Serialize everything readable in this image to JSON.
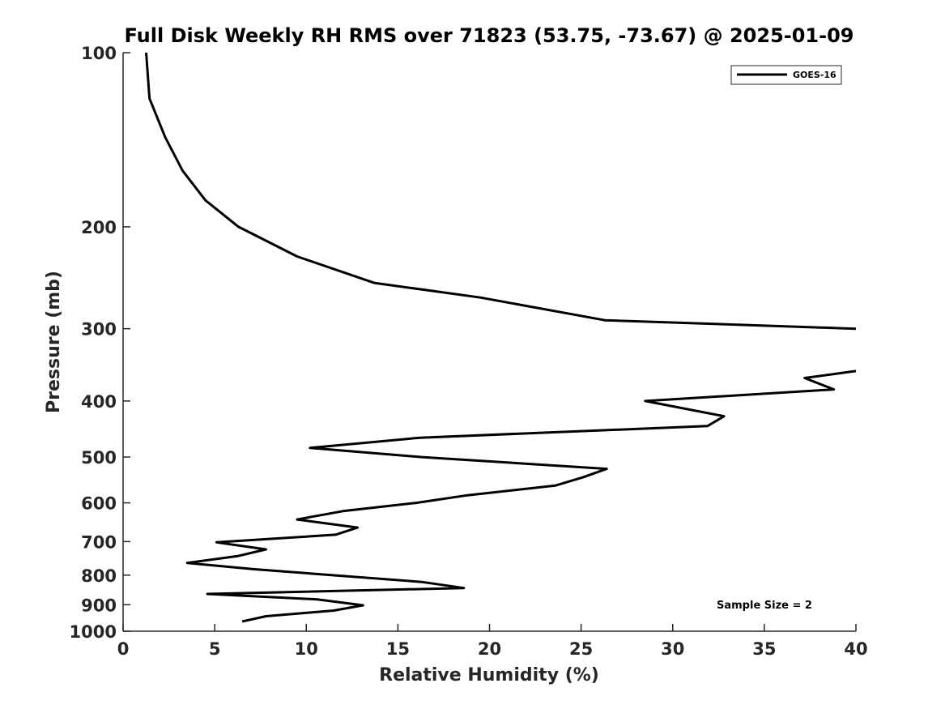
{
  "chart_data": {
    "type": "line",
    "title": "Full Disk Weekly RH RMS over 71823 (53.75, -73.67) @ 2025-01-09",
    "xlabel": "Relative Humidity (%)",
    "ylabel": "Pressure (mb)",
    "xlim": [
      0,
      40
    ],
    "ylim": [
      1000,
      100
    ],
    "y_scale": "log",
    "y_reversed": true,
    "x_ticks": [
      "0",
      "5",
      "10",
      "15",
      "20",
      "25",
      "30",
      "35",
      "40"
    ],
    "y_ticks": [
      "100",
      "200",
      "300",
      "400",
      "500",
      "600",
      "700",
      "800",
      "900",
      "1000"
    ],
    "grid": false,
    "legend_position": "top-right",
    "annotation": "Sample Size = 2",
    "series_color": "#000000",
    "series": [
      {
        "name": "GOES-16",
        "points": [
          {
            "x": 1.26,
            "y": 100
          },
          {
            "x": 1.44,
            "y": 120
          },
          {
            "x": 2.3,
            "y": 140
          },
          {
            "x": 3.25,
            "y": 160
          },
          {
            "x": 4.5,
            "y": 180
          },
          {
            "x": 6.3,
            "y": 200
          },
          {
            "x": 9.5,
            "y": 225
          },
          {
            "x": 13.7,
            "y": 250
          },
          {
            "x": 19.5,
            "y": 265
          },
          {
            "x": 26.3,
            "y": 290
          },
          {
            "x": 40.0,
            "y": 300
          },
          {
            "x": null,
            "y": null
          },
          {
            "x": 40.0,
            "y": 355
          },
          {
            "x": 37.2,
            "y": 365
          },
          {
            "x": 38.8,
            "y": 382
          },
          {
            "x": 28.5,
            "y": 400
          },
          {
            "x": 32.8,
            "y": 425
          },
          {
            "x": 31.9,
            "y": 442
          },
          {
            "x": 16.2,
            "y": 463
          },
          {
            "x": 10.2,
            "y": 482
          },
          {
            "x": 16.3,
            "y": 500
          },
          {
            "x": 26.4,
            "y": 524
          },
          {
            "x": 25.1,
            "y": 542
          },
          {
            "x": 23.6,
            "y": 560
          },
          {
            "x": 18.8,
            "y": 582
          },
          {
            "x": 16.0,
            "y": 600
          },
          {
            "x": 12.0,
            "y": 620
          },
          {
            "x": 9.5,
            "y": 641
          },
          {
            "x": 12.8,
            "y": 662
          },
          {
            "x": 11.6,
            "y": 681
          },
          {
            "x": 5.1,
            "y": 702
          },
          {
            "x": 7.8,
            "y": 722
          },
          {
            "x": 6.3,
            "y": 741
          },
          {
            "x": 3.5,
            "y": 762
          },
          {
            "x": 7.1,
            "y": 781
          },
          {
            "x": 16.3,
            "y": 822
          },
          {
            "x": 18.6,
            "y": 842
          },
          {
            "x": 4.6,
            "y": 862
          },
          {
            "x": 10.6,
            "y": 881
          },
          {
            "x": 13.1,
            "y": 902
          },
          {
            "x": 11.5,
            "y": 921
          },
          {
            "x": 7.8,
            "y": 942
          },
          {
            "x": 6.5,
            "y": 962
          }
        ]
      }
    ]
  }
}
